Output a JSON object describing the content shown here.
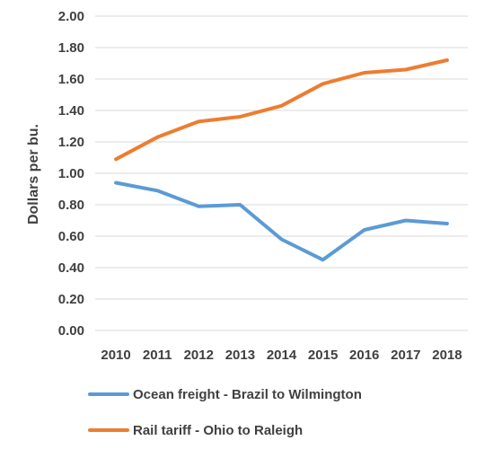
{
  "chart_data": {
    "type": "line",
    "title": "",
    "xlabel": "",
    "ylabel": "Dollars per bu.",
    "ylim": [
      0,
      2.0
    ],
    "ytick_step": 0.2,
    "yticks": [
      "0.00",
      "0.20",
      "0.40",
      "0.60",
      "0.80",
      "1.00",
      "1.20",
      "1.40",
      "1.60",
      "1.80",
      "2.00"
    ],
    "x": [
      "2010",
      "2011",
      "2012",
      "2013",
      "2014",
      "2015",
      "2016",
      "2017",
      "2018"
    ],
    "grid": "horizontal",
    "legend_position": "bottom",
    "series": [
      {
        "name": "Ocean freight - Brazil to Wilmington",
        "color": "#5B9BD5",
        "values": [
          0.94,
          0.89,
          0.79,
          0.8,
          0.58,
          0.45,
          0.64,
          0.7,
          0.68
        ]
      },
      {
        "name": "Rail tariff - Ohio to Raleigh",
        "color": "#ED7D31",
        "values": [
          1.09,
          1.23,
          1.33,
          1.36,
          1.43,
          1.57,
          1.64,
          1.66,
          1.72
        ]
      }
    ]
  }
}
